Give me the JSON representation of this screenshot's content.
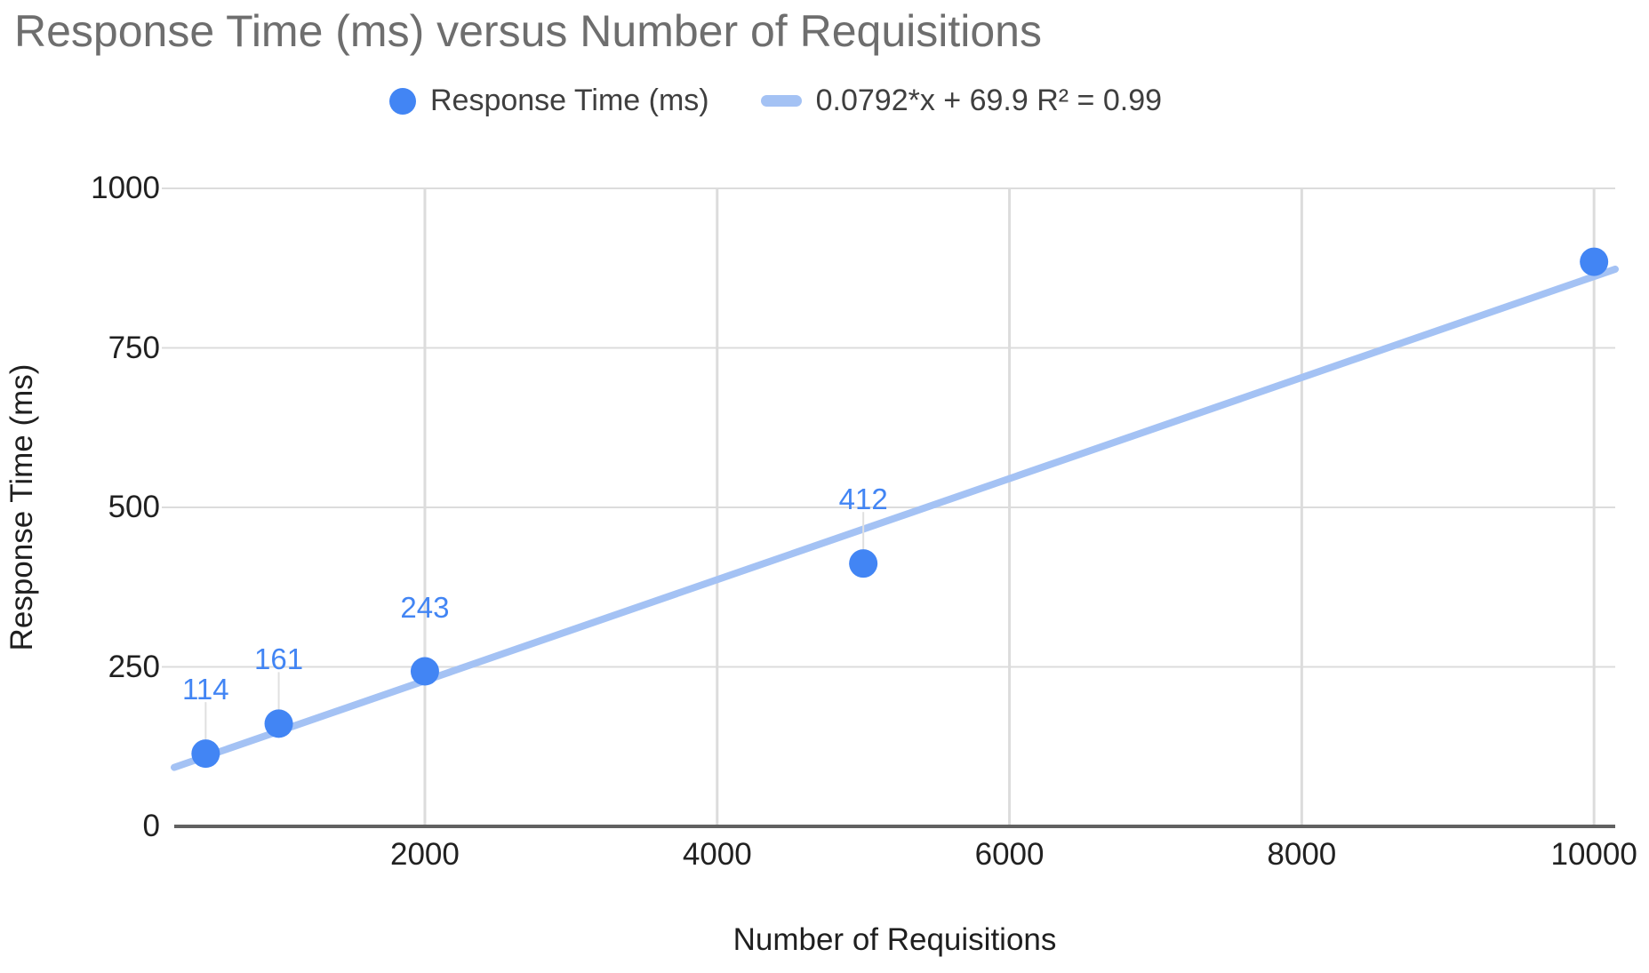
{
  "chart_data": {
    "type": "scatter",
    "title": "Response Time (ms) versus Number of Requisitions",
    "xlabel": "Number of Requisitions",
    "ylabel": "Response Time (ms)",
    "x_ticks": [
      2000,
      4000,
      6000,
      8000,
      10000
    ],
    "y_ticks": [
      0,
      250,
      500,
      750,
      1000
    ],
    "xlim": [
      285,
      10145
    ],
    "ylim": [
      0,
      1000
    ],
    "grid": true,
    "legend_position": "top",
    "series": [
      {
        "name": "Response Time (ms)",
        "points": [
          {
            "x": 500,
            "y": 114,
            "label": "114"
          },
          {
            "x": 1000,
            "y": 161,
            "label": "161"
          },
          {
            "x": 2000,
            "y": 243,
            "label": "243"
          },
          {
            "x": 5000,
            "y": 412,
            "label": "412"
          },
          {
            "x": 10000,
            "y": 885,
            "label": null
          }
        ]
      }
    ],
    "trendline": {
      "slope": 0.0792,
      "intercept": 69.9,
      "r2": 0.99,
      "label": "0.0792*x + 69.9 R² = 0.99"
    }
  },
  "colors": {
    "point": "#4285f4",
    "trendline": "#a4c2f4",
    "data_label": "#4285f4",
    "title": "#6e6e6e",
    "tick_label": "#212121",
    "gridline": "#dcdcdc",
    "axis_line": "#616161",
    "leader_line": "#e0e0e0"
  }
}
